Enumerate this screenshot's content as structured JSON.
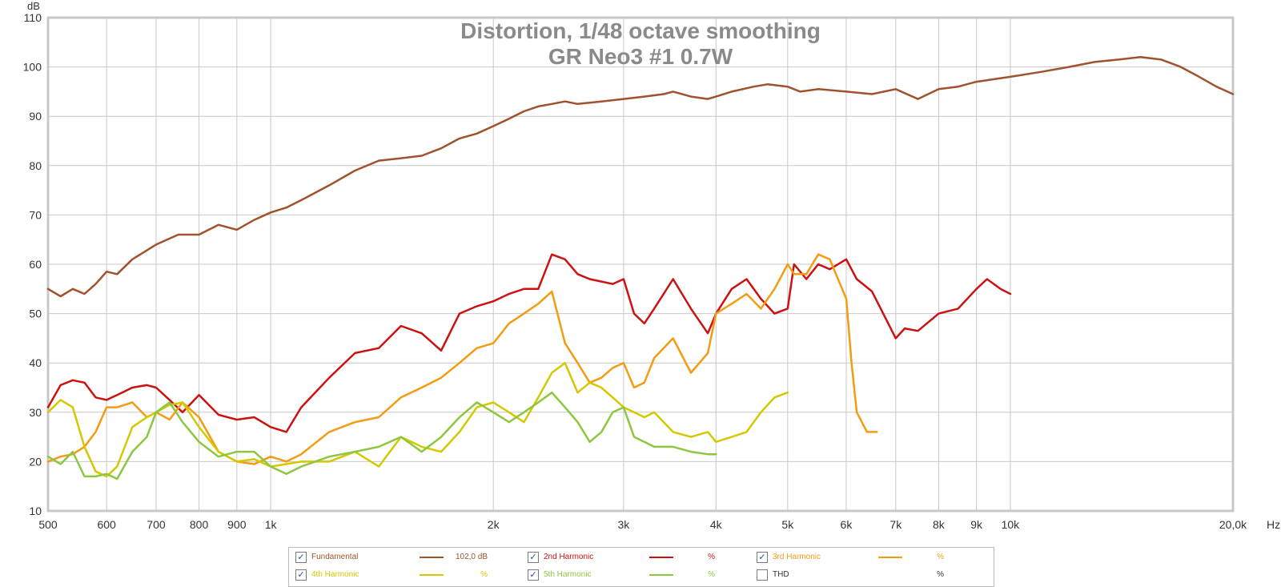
{
  "chart_data": {
    "type": "line",
    "title": "Distortion, 1/48 octave smoothing",
    "subtitle": "GR Neo3 #1 0.7W",
    "ylabel": "dB",
    "xunit": "Hz",
    "xscale": "log",
    "xlim": [
      500,
      20000
    ],
    "ylim": [
      10,
      110
    ],
    "yticks": [
      10,
      20,
      30,
      40,
      50,
      60,
      70,
      80,
      90,
      100,
      110
    ],
    "xticks": [
      {
        "v": 500,
        "label": "500"
      },
      {
        "v": 600,
        "label": "600"
      },
      {
        "v": 700,
        "label": "700"
      },
      {
        "v": 800,
        "label": "800"
      },
      {
        "v": 900,
        "label": "900"
      },
      {
        "v": 1000,
        "label": "1k"
      },
      {
        "v": 2000,
        "label": "2k"
      },
      {
        "v": 3000,
        "label": "3k"
      },
      {
        "v": 4000,
        "label": "4k"
      },
      {
        "v": 5000,
        "label": "5k"
      },
      {
        "v": 6000,
        "label": "6k"
      },
      {
        "v": 7000,
        "label": "7k"
      },
      {
        "v": 8000,
        "label": "8k"
      },
      {
        "v": 9000,
        "label": "9k"
      },
      {
        "v": 10000,
        "label": "10k"
      },
      {
        "v": 20000,
        "label": "20,0k"
      }
    ],
    "grid": true,
    "series": [
      {
        "name": "Fundamental",
        "color": "#a0522d",
        "x": [
          500,
          520,
          540,
          560,
          580,
          600,
          620,
          650,
          700,
          750,
          800,
          850,
          900,
          950,
          1000,
          1050,
          1100,
          1200,
          1300,
          1400,
          1500,
          1600,
          1700,
          1800,
          1900,
          2000,
          2100,
          2200,
          2300,
          2400,
          2500,
          2600,
          2800,
          3000,
          3200,
          3400,
          3500,
          3700,
          3900,
          4000,
          4200,
          4500,
          4700,
          5000,
          5200,
          5500,
          6000,
          6500,
          7000,
          7500,
          8000,
          8500,
          9000,
          10000,
          11000,
          12000,
          13000,
          14000,
          15000,
          16000,
          17000,
          18000,
          19000,
          20000
        ],
        "y": [
          55,
          53.5,
          55,
          54,
          56,
          58.5,
          58,
          61,
          64,
          66,
          66,
          68,
          67,
          69,
          70.5,
          71.5,
          73,
          76,
          79,
          81,
          81.5,
          82,
          83.5,
          85.5,
          86.5,
          88,
          89.5,
          91,
          92,
          92.5,
          93,
          92.5,
          93,
          93.5,
          94,
          94.5,
          95,
          94,
          93.5,
          94,
          95,
          96,
          96.5,
          96,
          95,
          95.5,
          95,
          94.5,
          95.5,
          93.5,
          95.5,
          96,
          97,
          98,
          99,
          100,
          101,
          101.5,
          102,
          101.5,
          100,
          98,
          96,
          94.5
        ]
      },
      {
        "name": "2nd Harmonic",
        "color": "#cc1111",
        "x": [
          500,
          520,
          540,
          560,
          580,
          600,
          620,
          650,
          680,
          700,
          730,
          760,
          800,
          850,
          900,
          950,
          1000,
          1050,
          1100,
          1200,
          1300,
          1400,
          1500,
          1600,
          1700,
          1800,
          1900,
          2000,
          2100,
          2200,
          2300,
          2400,
          2500,
          2600,
          2700,
          2800,
          2900,
          3000,
          3100,
          3200,
          3300,
          3500,
          3700,
          3900,
          4000,
          4200,
          4400,
          4600,
          4800,
          5000,
          5100,
          5300,
          5500,
          5700,
          6000,
          6200,
          6500,
          7000,
          7200,
          7500,
          8000,
          8500,
          9000,
          9300,
          9700,
          10000
        ],
        "y": [
          31,
          35.5,
          36.5,
          36,
          33,
          32.5,
          33.5,
          35,
          35.5,
          35,
          32.5,
          30,
          33.5,
          29.5,
          28.5,
          29,
          27,
          26,
          31,
          37,
          42,
          43,
          47.5,
          46,
          42.5,
          50,
          51.5,
          52.5,
          54,
          55,
          55,
          62,
          61,
          58,
          57,
          56.5,
          56,
          57,
          50,
          48,
          51,
          57,
          51,
          46,
          50,
          55,
          57,
          53,
          50,
          51,
          60,
          57,
          60,
          59,
          61,
          57,
          54.5,
          45,
          47,
          46.5,
          50,
          51,
          55,
          57,
          55,
          54
        ]
      },
      {
        "name": "3rd Harmonic",
        "color": "#f39c12",
        "x": [
          500,
          520,
          540,
          560,
          580,
          600,
          620,
          650,
          680,
          700,
          730,
          760,
          800,
          850,
          900,
          950,
          1000,
          1050,
          1100,
          1200,
          1300,
          1400,
          1500,
          1600,
          1700,
          1800,
          1900,
          2000,
          2100,
          2200,
          2300,
          2400,
          2500,
          2600,
          2700,
          2800,
          2900,
          3000,
          3100,
          3200,
          3300,
          3500,
          3700,
          3900,
          4000,
          4200,
          4400,
          4600,
          4800,
          5000,
          5100,
          5300,
          5500,
          5700,
          6000,
          6100,
          6200,
          6400,
          6600
        ],
        "y": [
          20,
          21,
          21.5,
          23,
          26,
          31,
          31,
          32,
          29,
          30,
          28.5,
          32,
          29,
          22,
          20,
          19.5,
          21,
          20,
          21.5,
          26,
          28,
          29,
          33,
          35,
          37,
          40,
          43,
          44,
          48,
          50,
          52,
          54.5,
          44,
          40,
          36,
          37,
          39,
          40,
          35,
          36,
          41,
          45,
          38,
          42,
          50,
          52,
          54,
          51,
          55,
          60,
          58,
          58,
          62,
          61,
          53,
          40,
          30,
          26,
          26
        ]
      },
      {
        "name": "4th Harmonic",
        "color": "#d4c800",
        "x": [
          500,
          520,
          540,
          560,
          580,
          600,
          620,
          650,
          680,
          700,
          730,
          760,
          800,
          850,
          900,
          950,
          1000,
          1050,
          1100,
          1200,
          1300,
          1400,
          1500,
          1600,
          1700,
          1800,
          1900,
          2000,
          2100,
          2200,
          2300,
          2400,
          2500,
          2600,
          2700,
          2800,
          2900,
          3000,
          3100,
          3200,
          3300,
          3500,
          3700,
          3900,
          4000,
          4200,
          4400,
          4600,
          4800,
          5000
        ],
        "y": [
          30,
          32.5,
          31,
          23,
          18,
          17,
          19,
          27,
          29,
          30,
          31.5,
          32,
          27,
          22,
          20,
          20.5,
          19,
          19.5,
          20,
          20,
          22,
          19,
          25,
          23,
          22,
          26,
          31,
          32,
          30,
          28,
          33,
          38,
          40,
          34,
          36,
          35,
          33,
          31,
          30,
          29,
          30,
          26,
          25,
          26,
          24,
          25,
          26,
          30,
          33,
          34
        ]
      },
      {
        "name": "5th Harmonic",
        "color": "#8dc63f",
        "x": [
          500,
          520,
          540,
          560,
          580,
          600,
          620,
          650,
          680,
          700,
          730,
          760,
          800,
          850,
          900,
          950,
          1000,
          1050,
          1100,
          1200,
          1300,
          1400,
          1500,
          1600,
          1700,
          1800,
          1900,
          2000,
          2100,
          2200,
          2300,
          2400,
          2500,
          2600,
          2700,
          2800,
          2900,
          3000,
          3100,
          3200,
          3300,
          3500,
          3700,
          3900,
          4000
        ],
        "y": [
          21,
          19.5,
          22,
          17,
          17,
          17.5,
          16.5,
          22,
          25,
          30,
          32,
          28,
          24,
          21,
          22,
          22,
          19,
          17.5,
          19,
          21,
          22,
          23,
          25,
          22,
          25,
          29,
          32,
          30,
          28,
          30,
          32,
          34,
          31,
          28,
          24,
          26,
          30,
          31,
          25,
          24,
          23,
          23,
          22,
          21.5,
          21.5
        ]
      }
    ]
  },
  "legend": {
    "items": [
      {
        "label": "Fundamental",
        "checked": true,
        "value": "102,0 dB",
        "color": "#a0522d"
      },
      {
        "label": "2nd Harmonic",
        "checked": true,
        "value": "%",
        "color": "#cc1111"
      },
      {
        "label": "3rd Harmonic",
        "checked": true,
        "value": "%",
        "color": "#f39c12"
      },
      {
        "label": "4th Harmonic",
        "checked": true,
        "value": "%",
        "color": "#d4c800"
      },
      {
        "label": "5th Harmonic",
        "checked": true,
        "value": "%",
        "color": "#8dc63f"
      },
      {
        "label": "THD",
        "checked": false,
        "value": "%",
        "color": "#333333"
      }
    ]
  }
}
